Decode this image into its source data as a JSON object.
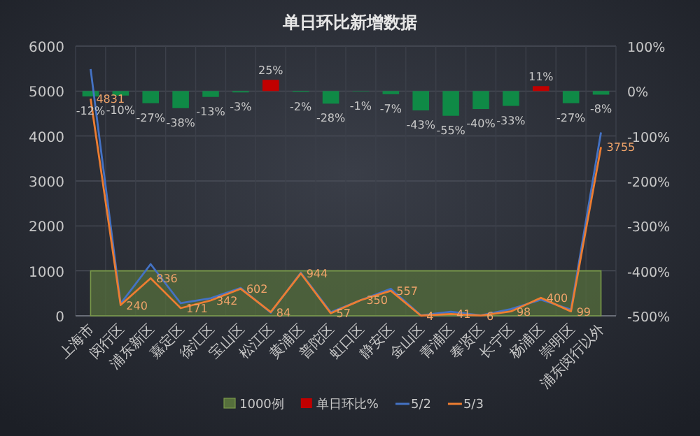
{
  "chart_data": {
    "type": "line",
    "title": "单日环比新增数据",
    "categories": [
      "上海市",
      "闵行区",
      "浦东新区",
      "嘉定区",
      "徐汇区",
      "宝山区",
      "松江区",
      "黄浦区",
      "普陀区",
      "虹口区",
      "静安区",
      "金山区",
      "青浦区",
      "奉贤区",
      "长宁区",
      "杨浦区",
      "崇明区",
      "浦东闵行以外"
    ],
    "series": [
      {
        "name": "1000例",
        "type": "area",
        "color": "#566f3c",
        "values": [
          1000,
          1000,
          1000,
          1000,
          1000,
          1000,
          1000,
          1000,
          1000,
          1000,
          1000,
          1000,
          1000,
          1000,
          1000,
          1000,
          1000,
          1000
        ]
      },
      {
        "name": "单日环比%",
        "type": "bar",
        "axis": "y2",
        "color": "#c00000",
        "colors": [
          "#0f8a46",
          "#0f8a46",
          "#0f8a46",
          "#0f8a46",
          "#0f8a46",
          "#0f8a46",
          "#c00000",
          "#0f8a46",
          "#0f8a46",
          "#0f8a46",
          "#0f8a46",
          "#0f8a46",
          "#0f8a46",
          "#0f8a46",
          "#0f8a46",
          "#c00000",
          "#0f8a46",
          "#0f8a46"
        ],
        "values": [
          -12,
          -10,
          -27,
          -38,
          -13,
          -3,
          25,
          -2,
          -28,
          -1,
          -7,
          -43,
          -55,
          -40,
          -33,
          11,
          -27,
          -8
        ],
        "value_labels": [
          "-12%",
          "-10%",
          "-27%",
          "-38%",
          "-13%",
          "-3%",
          "25%",
          "-2%",
          "-28%",
          "-1%",
          "-7%",
          "-43%",
          "-55%",
          "-40%",
          "-33%",
          "11%",
          "-27%",
          "-8%"
        ]
      },
      {
        "name": "5/2",
        "color": "#4472c4",
        "values": [
          5490,
          270,
          1150,
          280,
          390,
          620,
          70,
          960,
          80,
          350,
          600,
          10,
          90,
          10,
          150,
          360,
          140,
          4080
        ]
      },
      {
        "name": "5/3",
        "color": "#ed7d31",
        "values": [
          4831,
          240,
          836,
          171,
          342,
          602,
          84,
          944,
          57,
          350,
          557,
          4,
          41,
          6,
          98,
          400,
          99,
          3755
        ],
        "value_labels": [
          "4831",
          "240",
          "836",
          "171",
          "342",
          "602",
          "84",
          "944",
          "57",
          "350",
          "557",
          "4",
          "41",
          "6",
          "98",
          "400",
          "99",
          "3755"
        ]
      }
    ],
    "ylim": [
      0,
      6000
    ],
    "yticks": [
      0,
      1000,
      2000,
      3000,
      4000,
      5000,
      6000
    ],
    "y2lim": [
      -500,
      100
    ],
    "y2ticks": [
      {
        "value": -500,
        "label": "-500%"
      },
      {
        "value": -400,
        "label": "-400%"
      },
      {
        "value": -300,
        "label": "-300%"
      },
      {
        "value": -200,
        "label": "-200%"
      },
      {
        "value": -100,
        "label": "-100%"
      },
      {
        "value": 0,
        "label": "0%"
      },
      {
        "value": 100,
        "label": "100%"
      }
    ],
    "grid": true,
    "legend": "bottom",
    "marker": "none",
    "line_style": "solid"
  }
}
